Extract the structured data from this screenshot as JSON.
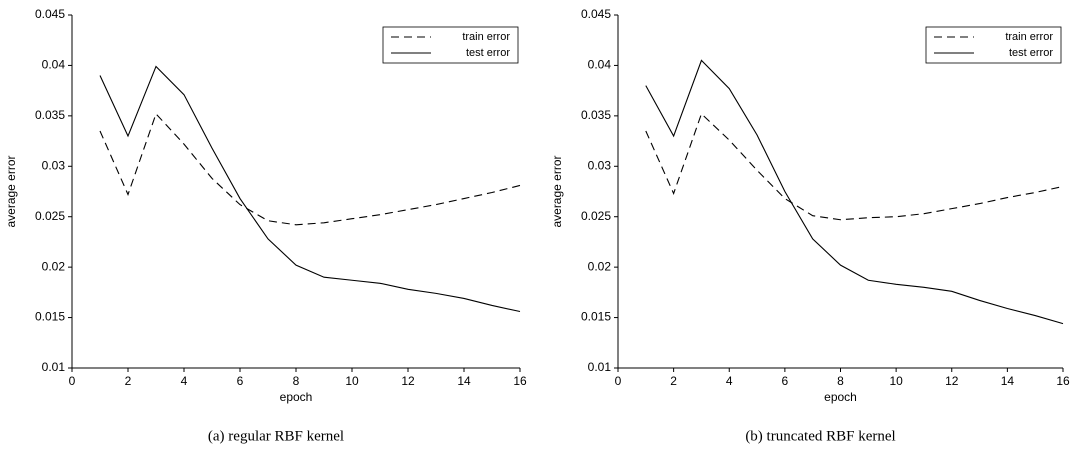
{
  "chart_data": [
    {
      "type": "line",
      "caption": "(a) regular RBF kernel",
      "xlabel": "epoch",
      "ylabel": "average error",
      "x": [
        1,
        2,
        3,
        4,
        5,
        6,
        7,
        8,
        9,
        10,
        11,
        12,
        13,
        14,
        15,
        16
      ],
      "series": [
        {
          "name": "train error",
          "color": "#000000",
          "style": "dashed",
          "values": [
            0.0335,
            0.0272,
            0.0352,
            0.0322,
            0.0288,
            0.0262,
            0.0246,
            0.0242,
            0.0244,
            0.0248,
            0.0252,
            0.0257,
            0.0262,
            0.0268,
            0.0274,
            0.0281
          ]
        },
        {
          "name": "test error",
          "color": "#000000",
          "style": "solid",
          "values": [
            0.039,
            0.033,
            0.0399,
            0.0371,
            0.0318,
            0.0268,
            0.0228,
            0.0202,
            0.019,
            0.0187,
            0.0184,
            0.0178,
            0.0174,
            0.0169,
            0.0162,
            0.0156
          ]
        }
      ],
      "xlim": [
        0,
        16
      ],
      "xticks": [
        0,
        2,
        4,
        6,
        8,
        10,
        12,
        14,
        16
      ],
      "ylim": [
        0.01,
        0.045
      ],
      "yticks": [
        0.01,
        0.015,
        0.02,
        0.025,
        0.03,
        0.035,
        0.04,
        0.045
      ],
      "legend": "upper right"
    },
    {
      "type": "line",
      "caption": "(b) truncated RBF kernel",
      "xlabel": "epoch",
      "ylabel": "average error",
      "x": [
        1,
        2,
        3,
        4,
        5,
        6,
        7,
        8,
        9,
        10,
        11,
        12,
        13,
        14,
        15,
        16
      ],
      "series": [
        {
          "name": "train error",
          "color": "#000000",
          "style": "dashed",
          "values": [
            0.0335,
            0.0273,
            0.0352,
            0.0326,
            0.0296,
            0.0268,
            0.0251,
            0.0247,
            0.0249,
            0.025,
            0.0253,
            0.0258,
            0.0263,
            0.0269,
            0.0274,
            0.028
          ]
        },
        {
          "name": "test error",
          "color": "#000000",
          "style": "solid",
          "values": [
            0.038,
            0.033,
            0.0405,
            0.0377,
            0.0331,
            0.0275,
            0.0228,
            0.0202,
            0.0187,
            0.0183,
            0.018,
            0.0176,
            0.0167,
            0.0159,
            0.0152,
            0.0144
          ]
        }
      ],
      "xlim": [
        0,
        16
      ],
      "xticks": [
        0,
        2,
        4,
        6,
        8,
        10,
        12,
        14,
        16
      ],
      "ylim": [
        0.01,
        0.045
      ],
      "yticks": [
        0.01,
        0.015,
        0.02,
        0.025,
        0.03,
        0.035,
        0.04,
        0.045
      ],
      "legend": "upper right"
    }
  ]
}
